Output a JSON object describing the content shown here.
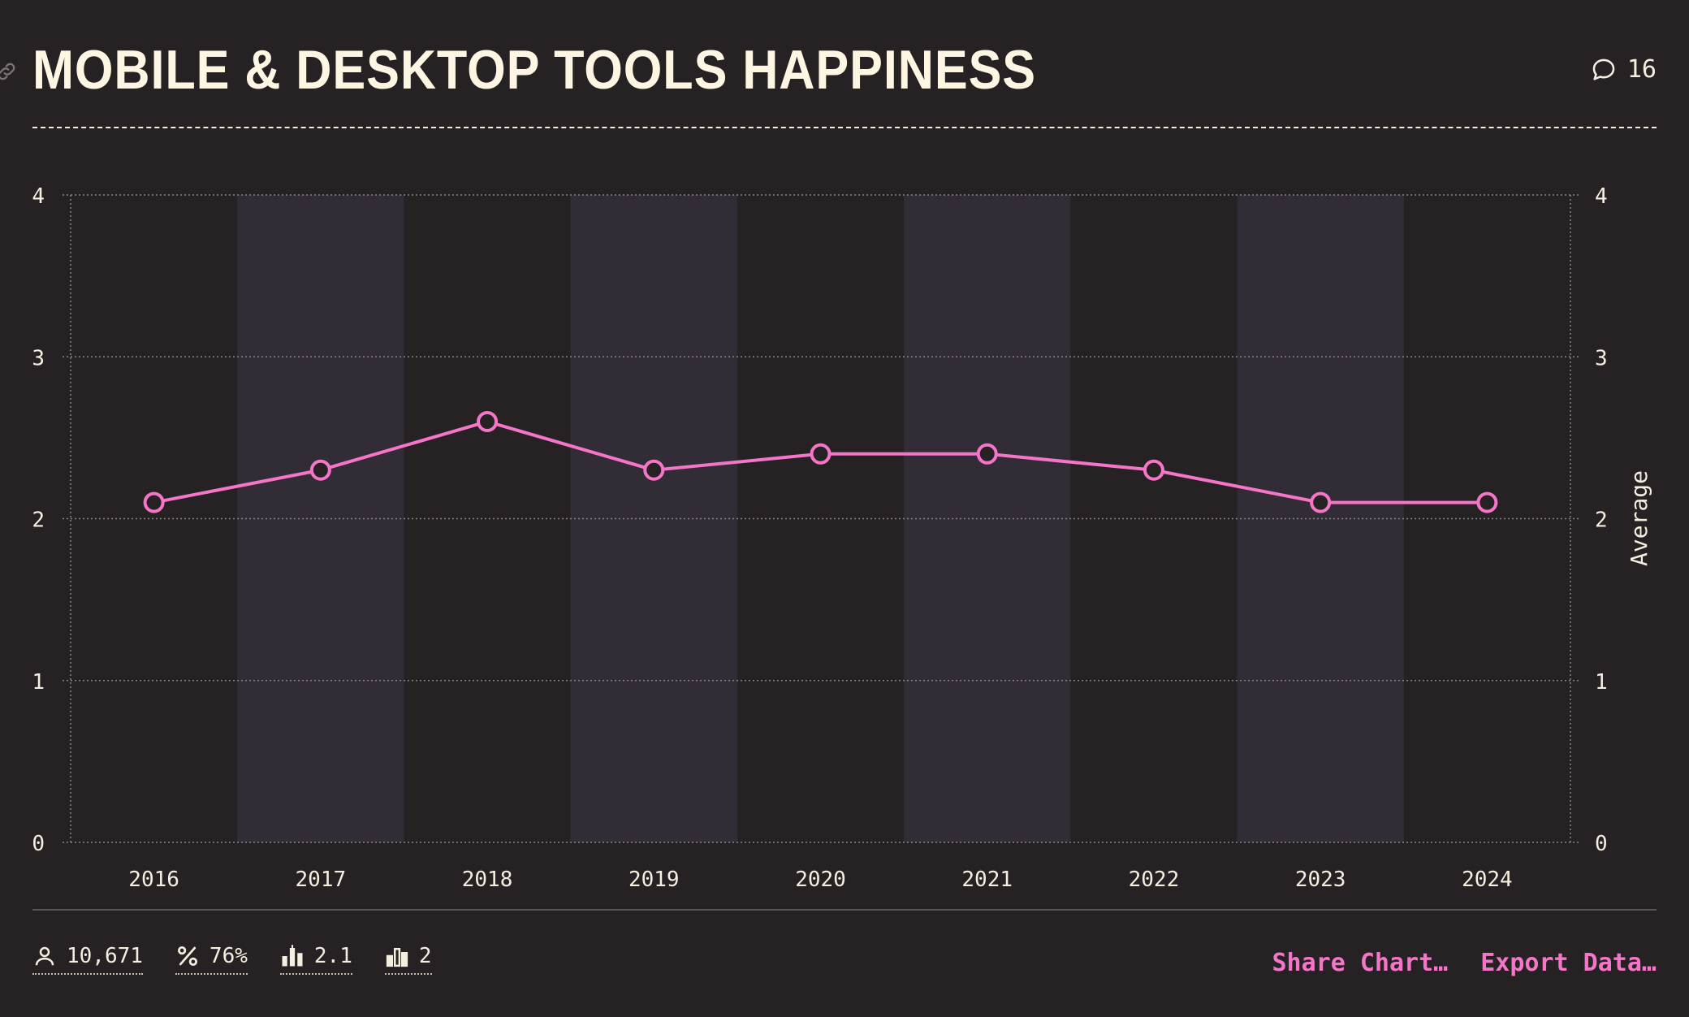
{
  "title": "MOBILE & DESKTOP TOOLS HAPPINESS",
  "comments": {
    "count": "16",
    "icon": "comment-icon"
  },
  "chart_data": {
    "type": "line",
    "categories": [
      "2016",
      "2017",
      "2018",
      "2019",
      "2020",
      "2021",
      "2022",
      "2023",
      "2024"
    ],
    "values": [
      2.1,
      2.3,
      2.6,
      2.3,
      2.4,
      2.4,
      2.3,
      2.1,
      2.1
    ],
    "yticks": [
      "0",
      "1",
      "2",
      "3",
      "4"
    ],
    "ylim": [
      0,
      4
    ],
    "ylabel": "Average",
    "right_axis_label": "Average",
    "grid": true,
    "line_color": "#f576c8",
    "band_color": "#322c36"
  },
  "stats": [
    {
      "icon": "user-icon",
      "value": "10,671"
    },
    {
      "icon": "percent-icon",
      "value": "76%"
    },
    {
      "icon": "average-bars-icon",
      "value": "2.1"
    },
    {
      "icon": "median-bars-icon",
      "value": "2"
    }
  ],
  "actions": {
    "share": "Share Chart…",
    "export": "Export Data…"
  },
  "colors": {
    "background": "#262223",
    "accent": "#f576c8",
    "text": "#f5efe0"
  }
}
